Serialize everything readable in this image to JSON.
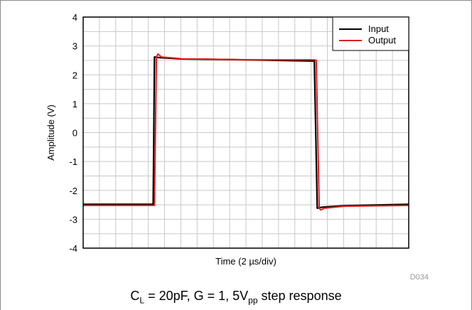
{
  "chart_data": {
    "type": "line",
    "title": "",
    "xlabel": "Time (2 µs/div)",
    "ylabel": "Amplitude (V)",
    "xlim": [
      0,
      20
    ],
    "ylim": [
      -4,
      4
    ],
    "yticks": [
      "4",
      "3",
      "2",
      "1",
      "0",
      "-1",
      "-2",
      "-3",
      "-4"
    ],
    "grid": true,
    "legend": "top-right",
    "series": [
      {
        "name": "Input",
        "color": "#000000",
        "x": [
          0,
          4.3,
          4.38,
          4.6,
          6,
          10,
          14,
          14.2,
          14.38,
          14.5,
          14.7,
          16,
          20
        ],
        "y": [
          -2.48,
          -2.48,
          2.62,
          2.6,
          2.55,
          2.52,
          2.48,
          2.48,
          -2.62,
          -2.6,
          -2.58,
          -2.53,
          -2.48
        ]
      },
      {
        "name": "Output",
        "color": "#e41a1c",
        "x": [
          0,
          4.38,
          4.5,
          4.6,
          4.8,
          6,
          10,
          14.2,
          14.32,
          14.5,
          14.6,
          14.8,
          16,
          20
        ],
        "y": [
          -2.52,
          -2.52,
          2.62,
          2.72,
          2.62,
          2.56,
          2.52,
          2.52,
          2.5,
          -2.62,
          -2.68,
          -2.62,
          -2.55,
          -2.52
        ]
      }
    ]
  },
  "figure_code": "D034",
  "caption": {
    "c": "C",
    "c_sub": "L",
    "mid": " = 20pF, G = 1, 5V",
    "v_sub": "pp",
    "end": " step response"
  }
}
